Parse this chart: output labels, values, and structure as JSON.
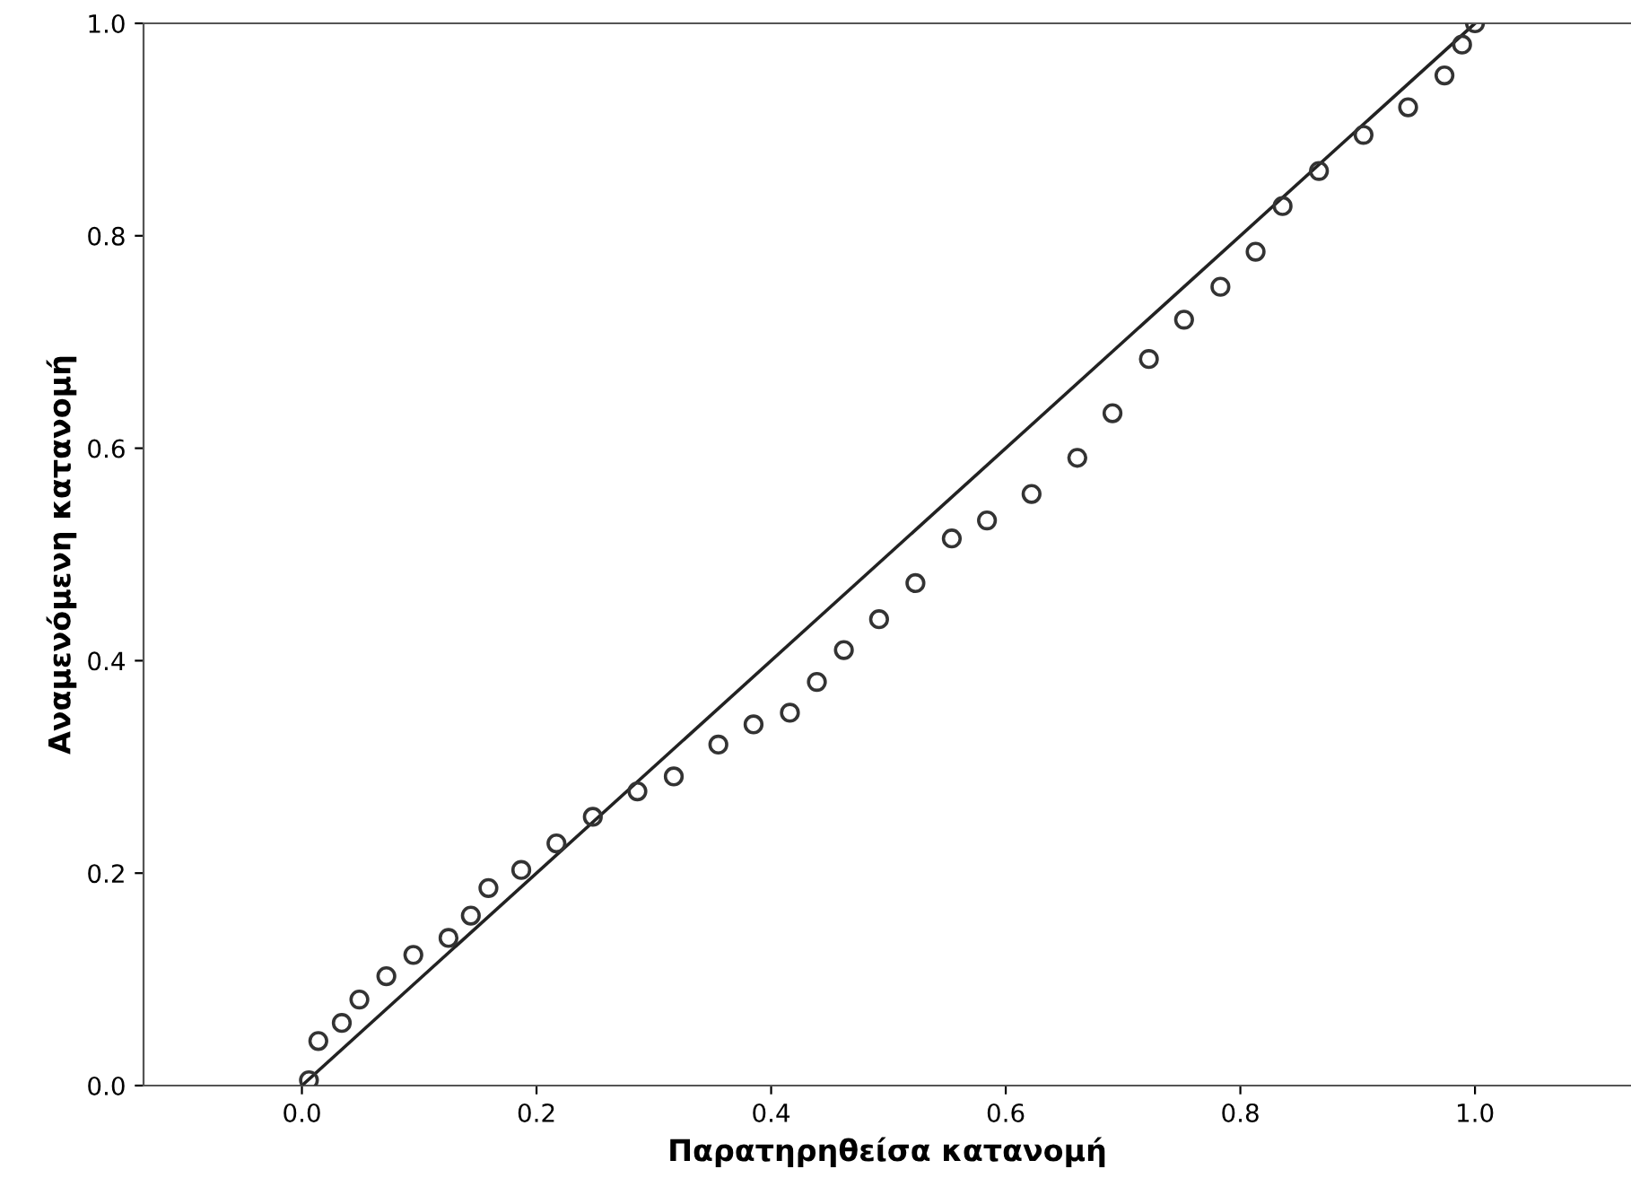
{
  "chart_data": {
    "type": "scatter",
    "xlabel": "Παρατηρηθείσα κατανομή",
    "ylabel": "Αναμενόμενη κατανομή",
    "xlim": [
      -0.135,
      1.133
    ],
    "ylim": [
      0,
      1.0
    ],
    "xticks": [
      {
        "value": 0,
        "label": "0.0"
      },
      0.2,
      0.4,
      0.6,
      0.8,
      {
        "value": 1,
        "label": "1.0"
      }
    ],
    "yticks": [
      {
        "value": 0,
        "label": "0.0"
      },
      0.2,
      0.4,
      0.6,
      0.8,
      {
        "value": 1,
        "label": "1.0"
      }
    ],
    "grid": false,
    "series": [
      {
        "marker": "circle",
        "color": "#333333",
        "x": [
          0.006,
          0.014,
          0.034,
          0.049,
          0.072,
          0.095,
          0.125,
          0.144,
          0.159,
          0.187,
          0.217,
          0.248,
          0.286,
          0.317,
          0.355,
          0.385,
          0.416,
          0.439,
          0.462,
          0.492,
          0.523,
          0.554,
          0.584,
          0.622,
          0.661,
          0.691,
          0.722,
          0.752,
          0.783,
          0.813,
          0.836,
          0.867,
          0.905,
          0.943,
          0.974,
          0.989,
          1.0
        ],
        "values": [
          0.005,
          0.042,
          0.059,
          0.081,
          0.103,
          0.123,
          0.139,
          0.16,
          0.186,
          0.203,
          0.228,
          0.253,
          0.277,
          0.291,
          0.321,
          0.34,
          0.351,
          0.38,
          0.41,
          0.439,
          0.473,
          0.515,
          0.532,
          0.557,
          0.591,
          0.633,
          0.684,
          0.721,
          0.752,
          0.785,
          0.828,
          0.861,
          0.895,
          0.921,
          0.951,
          0.98,
          1.0
        ]
      },
      {
        "type": "line",
        "marker": "none",
        "color": "#222222",
        "x": [
          0,
          1
        ],
        "values": [
          0,
          1
        ]
      }
    ]
  }
}
